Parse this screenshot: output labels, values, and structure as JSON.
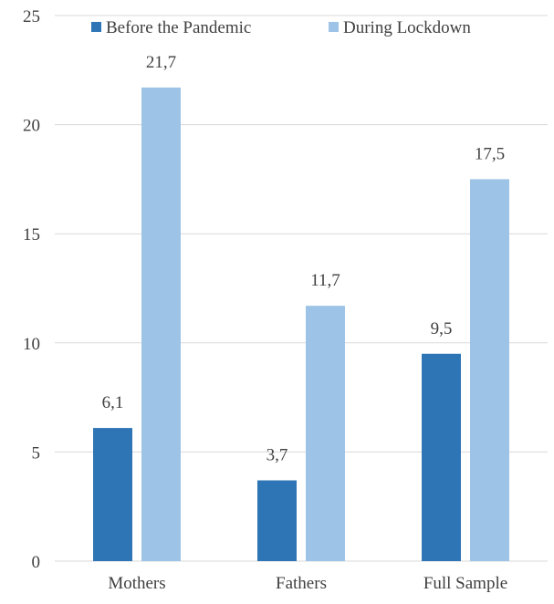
{
  "chart_data": {
    "type": "bar",
    "categories": [
      "Mothers",
      "Fathers",
      "Full Sample"
    ],
    "series": [
      {
        "name": "Before the Pandemic",
        "values": [
          6.1,
          3.7,
          9.5
        ],
        "labels": [
          "6,1",
          "3,7",
          "9,5"
        ],
        "color": "#2E75B6"
      },
      {
        "name": "During Lockdown",
        "values": [
          21.7,
          11.7,
          17.5
        ],
        "labels": [
          "21,7",
          "11,7",
          "17,5"
        ],
        "color": "#9DC3E6"
      }
    ],
    "ylim": [
      0,
      25
    ],
    "yticks": [
      0,
      5,
      10,
      15,
      20,
      25
    ],
    "grid": true,
    "gridColor": "#D9D9D9",
    "legend_position": "top"
  }
}
